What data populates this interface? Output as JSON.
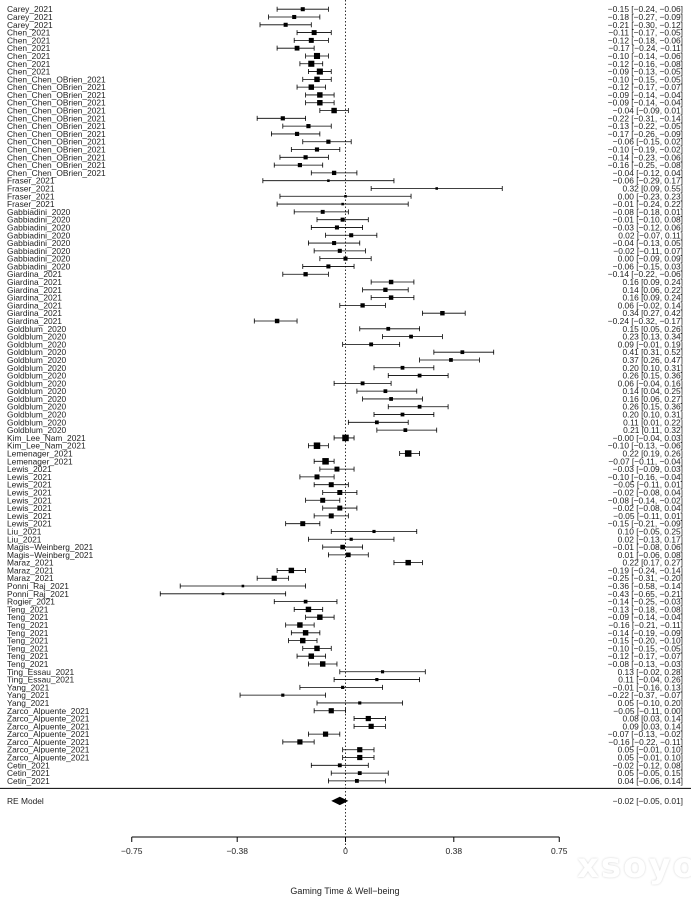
{
  "chart_data": {
    "type": "forest",
    "xlabel": "Gaming Time & Well−being",
    "xlim": [
      -0.75,
      0.75
    ],
    "x_ticks": [
      -0.75,
      -0.38,
      0,
      0.38,
      0.75
    ],
    "x_tick_labels": [
      "−0.75",
      "−0.38",
      "0",
      "0.38",
      "0.75"
    ],
    "reference_line": 0,
    "studies": [
      {
        "label": "Carey_2021",
        "est": -0.15,
        "lo": -0.24,
        "hi": -0.06,
        "ci_text": "−0.15 [−0.24, −0.06]"
      },
      {
        "label": "Carey_2021",
        "est": -0.18,
        "lo": -0.27,
        "hi": -0.09,
        "ci_text": "−0.18 [−0.27, −0.09]"
      },
      {
        "label": "Carey_2021",
        "est": -0.21,
        "lo": -0.3,
        "hi": -0.12,
        "ci_text": "−0.21 [−0.30, −0.12]"
      },
      {
        "label": "Chen_2021",
        "est": -0.11,
        "lo": -0.17,
        "hi": -0.05,
        "ci_text": "−0.11 [−0.17, −0.05]"
      },
      {
        "label": "Chen_2021",
        "est": -0.12,
        "lo": -0.18,
        "hi": -0.06,
        "ci_text": "−0.12 [−0.18, −0.06]"
      },
      {
        "label": "Chen_2021",
        "est": -0.17,
        "lo": -0.24,
        "hi": -0.11,
        "ci_text": "−0.17 [−0.24, −0.11]"
      },
      {
        "label": "Chen_2021",
        "est": -0.1,
        "lo": -0.14,
        "hi": -0.06,
        "ci_text": "−0.10 [−0.14, −0.06]"
      },
      {
        "label": "Chen_2021",
        "est": -0.12,
        "lo": -0.16,
        "hi": -0.08,
        "ci_text": "−0.12 [−0.16, −0.08]"
      },
      {
        "label": "Chen_2021",
        "est": -0.09,
        "lo": -0.13,
        "hi": -0.05,
        "ci_text": "−0.09 [−0.13, −0.05]"
      },
      {
        "label": "Chen_Chen_OBrien_2021",
        "est": -0.1,
        "lo": -0.15,
        "hi": -0.05,
        "ci_text": "−0.10 [−0.15, −0.05]"
      },
      {
        "label": "Chen_Chen_OBrien_2021",
        "est": -0.12,
        "lo": -0.17,
        "hi": -0.07,
        "ci_text": "−0.12 [−0.17, −0.07]"
      },
      {
        "label": "Chen_Chen_OBrien_2021",
        "est": -0.09,
        "lo": -0.14,
        "hi": -0.04,
        "ci_text": "−0.09 [−0.14, −0.04]"
      },
      {
        "label": "Chen_Chen_OBrien_2021",
        "est": -0.09,
        "lo": -0.14,
        "hi": -0.04,
        "ci_text": "−0.09 [−0.14, −0.04]"
      },
      {
        "label": "Chen_Chen_OBrien_2021",
        "est": -0.04,
        "lo": -0.09,
        "hi": 0.01,
        "ci_text": "−0.04 [−0.09, 0.01]"
      },
      {
        "label": "Chen_Chen_OBrien_2021",
        "est": -0.22,
        "lo": -0.31,
        "hi": -0.14,
        "ci_text": "−0.22 [−0.31, −0.14]"
      },
      {
        "label": "Chen_Chen_OBrien_2021",
        "est": -0.13,
        "lo": -0.22,
        "hi": -0.05,
        "ci_text": "−0.13 [−0.22, −0.05]"
      },
      {
        "label": "Chen_Chen_OBrien_2021",
        "est": -0.17,
        "lo": -0.26,
        "hi": -0.09,
        "ci_text": "−0.17 [−0.26, −0.09]"
      },
      {
        "label": "Chen_Chen_OBrien_2021",
        "est": -0.06,
        "lo": -0.15,
        "hi": 0.02,
        "ci_text": "−0.06 [−0.15, 0.02]"
      },
      {
        "label": "Chen_Chen_OBrien_2021",
        "est": -0.1,
        "lo": -0.19,
        "hi": -0.02,
        "ci_text": "−0.10 [−0.19, −0.02]"
      },
      {
        "label": "Chen_Chen_OBrien_2021",
        "est": -0.14,
        "lo": -0.23,
        "hi": -0.06,
        "ci_text": "−0.14 [−0.23, −0.06]"
      },
      {
        "label": "Chen_Chen_OBrien_2021",
        "est": -0.16,
        "lo": -0.25,
        "hi": -0.08,
        "ci_text": "−0.16 [−0.25, −0.08]"
      },
      {
        "label": "Chen_Chen_OBrien_2021",
        "est": -0.04,
        "lo": -0.12,
        "hi": 0.04,
        "ci_text": "−0.04 [−0.12, 0.04]"
      },
      {
        "label": "Fraser_2021",
        "est": -0.06,
        "lo": -0.29,
        "hi": 0.17,
        "ci_text": "−0.06 [−0.29, 0.17]"
      },
      {
        "label": "Fraser_2021",
        "est": 0.32,
        "lo": 0.09,
        "hi": 0.55,
        "ci_text": "0.32 [0.09, 0.55]"
      },
      {
        "label": "Fraser_2021",
        "est": 0.0,
        "lo": -0.23,
        "hi": 0.23,
        "ci_text": "0.00 [−0.23, 0.23]"
      },
      {
        "label": "Fraser_2021",
        "est": -0.01,
        "lo": -0.24,
        "hi": 0.22,
        "ci_text": "−0.01 [−0.24, 0.22]"
      },
      {
        "label": "Gabbiadini_2020",
        "est": -0.08,
        "lo": -0.18,
        "hi": 0.01,
        "ci_text": "−0.08 [−0.18, 0.01]"
      },
      {
        "label": "Gabbiadini_2020",
        "est": -0.01,
        "lo": -0.1,
        "hi": 0.08,
        "ci_text": "−0.01 [−0.10, 0.08]"
      },
      {
        "label": "Gabbiadini_2020",
        "est": -0.03,
        "lo": -0.12,
        "hi": 0.06,
        "ci_text": "−0.03 [−0.12, 0.06]"
      },
      {
        "label": "Gabbiadini_2020",
        "est": 0.02,
        "lo": -0.07,
        "hi": 0.11,
        "ci_text": "0.02 [−0.07, 0.11]"
      },
      {
        "label": "Gabbiadini_2020",
        "est": -0.04,
        "lo": -0.13,
        "hi": 0.05,
        "ci_text": "−0.04 [−0.13, 0.05]"
      },
      {
        "label": "Gabbiadini_2020",
        "est": -0.02,
        "lo": -0.11,
        "hi": 0.07,
        "ci_text": "−0.02 [−0.11, 0.07]"
      },
      {
        "label": "Gabbiadini_2020",
        "est": 0.0,
        "lo": -0.09,
        "hi": 0.09,
        "ci_text": "0.00 [−0.09, 0.09]"
      },
      {
        "label": "Gabbiadini_2020",
        "est": -0.06,
        "lo": -0.15,
        "hi": 0.03,
        "ci_text": "−0.06 [−0.15, 0.03]"
      },
      {
        "label": "Giardina_2021",
        "est": -0.14,
        "lo": -0.22,
        "hi": -0.06,
        "ci_text": "−0.14 [−0.22, −0.06]"
      },
      {
        "label": "Giardina_2021",
        "est": 0.16,
        "lo": 0.09,
        "hi": 0.24,
        "ci_text": "0.16 [0.09, 0.24]"
      },
      {
        "label": "Giardina_2021",
        "est": 0.14,
        "lo": 0.06,
        "hi": 0.22,
        "ci_text": "0.14 [0.06, 0.22]"
      },
      {
        "label": "Giardina_2021",
        "est": 0.16,
        "lo": 0.09,
        "hi": 0.24,
        "ci_text": "0.16 [0.09, 0.24]"
      },
      {
        "label": "Giardina_2021",
        "est": 0.06,
        "lo": -0.02,
        "hi": 0.14,
        "ci_text": "0.06 [−0.02, 0.14]"
      },
      {
        "label": "Giardina_2021",
        "est": 0.34,
        "lo": 0.27,
        "hi": 0.42,
        "ci_text": "0.34 [0.27, 0.42]"
      },
      {
        "label": "Giardina_2021",
        "est": -0.24,
        "lo": -0.32,
        "hi": -0.17,
        "ci_text": "−0.24 [−0.32, −0.17]"
      },
      {
        "label": "Goldblum_2020",
        "est": 0.15,
        "lo": 0.05,
        "hi": 0.26,
        "ci_text": "0.15 [0.05, 0.26]"
      },
      {
        "label": "Goldblum_2020",
        "est": 0.23,
        "lo": 0.13,
        "hi": 0.34,
        "ci_text": "0.23 [0.13, 0.34]"
      },
      {
        "label": "Goldblum_2020",
        "est": 0.09,
        "lo": -0.01,
        "hi": 0.19,
        "ci_text": "0.09 [−0.01, 0.19]"
      },
      {
        "label": "Goldblum_2020",
        "est": 0.41,
        "lo": 0.31,
        "hi": 0.52,
        "ci_text": "0.41 [0.31, 0.52]"
      },
      {
        "label": "Goldblum_2020",
        "est": 0.37,
        "lo": 0.26,
        "hi": 0.47,
        "ci_text": "0.37 [0.26, 0.47]"
      },
      {
        "label": "Goldblum_2020",
        "est": 0.2,
        "lo": 0.1,
        "hi": 0.31,
        "ci_text": "0.20 [0.10, 0.31]"
      },
      {
        "label": "Goldblum_2020",
        "est": 0.26,
        "lo": 0.15,
        "hi": 0.36,
        "ci_text": "0.26 [0.15, 0.36]"
      },
      {
        "label": "Goldblum_2020",
        "est": 0.06,
        "lo": -0.04,
        "hi": 0.16,
        "ci_text": "0.06 [−0.04, 0.16]"
      },
      {
        "label": "Goldblum_2020",
        "est": 0.14,
        "lo": 0.04,
        "hi": 0.25,
        "ci_text": "0.14 [0.04, 0.25]"
      },
      {
        "label": "Goldblum_2020",
        "est": 0.16,
        "lo": 0.06,
        "hi": 0.27,
        "ci_text": "0.16 [0.06, 0.27]"
      },
      {
        "label": "Goldblum_2020",
        "est": 0.26,
        "lo": 0.15,
        "hi": 0.36,
        "ci_text": "0.26 [0.15, 0.36]"
      },
      {
        "label": "Goldblum_2020",
        "est": 0.2,
        "lo": 0.1,
        "hi": 0.31,
        "ci_text": "0.20 [0.10, 0.31]"
      },
      {
        "label": "Goldblum_2020",
        "est": 0.11,
        "lo": 0.01,
        "hi": 0.22,
        "ci_text": "0.11 [0.01, 0.22]"
      },
      {
        "label": "Goldblum_2020",
        "est": 0.21,
        "lo": 0.11,
        "hi": 0.32,
        "ci_text": "0.21 [0.11, 0.32]"
      },
      {
        "label": "Kim_Lee_Nam_2021",
        "est": 0.0,
        "lo": -0.04,
        "hi": 0.03,
        "ci_text": "−0.00 [−0.04, 0.03]"
      },
      {
        "label": "Kim_Lee_Nam_2021",
        "est": -0.1,
        "lo": -0.13,
        "hi": -0.06,
        "ci_text": "−0.10 [−0.13, −0.06]"
      },
      {
        "label": "Lemenager_2021",
        "est": 0.22,
        "lo": 0.19,
        "hi": 0.26,
        "ci_text": "0.22 [0.19, 0.26]"
      },
      {
        "label": "Lemenager_2021",
        "est": -0.07,
        "lo": -0.11,
        "hi": -0.04,
        "ci_text": "−0.07 [−0.11, −0.04]"
      },
      {
        "label": "Lewis_2021",
        "est": -0.03,
        "lo": -0.09,
        "hi": 0.03,
        "ci_text": "−0.03 [−0.09, 0.03]"
      },
      {
        "label": "Lewis_2021",
        "est": -0.1,
        "lo": -0.16,
        "hi": -0.04,
        "ci_text": "−0.10 [−0.16, −0.04]"
      },
      {
        "label": "Lewis_2021",
        "est": -0.05,
        "lo": -0.11,
        "hi": 0.01,
        "ci_text": "−0.05 [−0.11, 0.01]"
      },
      {
        "label": "Lewis_2021",
        "est": -0.02,
        "lo": -0.08,
        "hi": 0.04,
        "ci_text": "−0.02 [−0.08, 0.04]"
      },
      {
        "label": "Lewis_2021",
        "est": -0.08,
        "lo": -0.14,
        "hi": -0.02,
        "ci_text": "−0.08 [−0.14, −0.02]"
      },
      {
        "label": "Lewis_2021",
        "est": -0.02,
        "lo": -0.08,
        "hi": 0.04,
        "ci_text": "−0.02 [−0.08, 0.04]"
      },
      {
        "label": "Lewis_2021",
        "est": -0.05,
        "lo": -0.11,
        "hi": 0.01,
        "ci_text": "−0.05 [−0.11, 0.01]"
      },
      {
        "label": "Lewis_2021",
        "est": -0.15,
        "lo": -0.21,
        "hi": -0.09,
        "ci_text": "−0.15 [−0.21, −0.09]"
      },
      {
        "label": "Liu_2021",
        "est": 0.1,
        "lo": -0.05,
        "hi": 0.25,
        "ci_text": "0.10 [−0.05, 0.25]"
      },
      {
        "label": "Liu_2021",
        "est": 0.02,
        "lo": -0.13,
        "hi": 0.17,
        "ci_text": "0.02 [−0.13, 0.17]"
      },
      {
        "label": "Magis−Weinberg_2021",
        "est": -0.01,
        "lo": -0.08,
        "hi": 0.06,
        "ci_text": "−0.01 [−0.08, 0.06]"
      },
      {
        "label": "Magis−Weinberg_2021",
        "est": 0.01,
        "lo": -0.06,
        "hi": 0.08,
        "ci_text": "0.01 [−0.06, 0.08]"
      },
      {
        "label": "Maraz_2021",
        "est": 0.22,
        "lo": 0.17,
        "hi": 0.27,
        "ci_text": "0.22 [0.17, 0.27]"
      },
      {
        "label": "Maraz_2021",
        "est": -0.19,
        "lo": -0.24,
        "hi": -0.14,
        "ci_text": "−0.19 [−0.24, −0.14]"
      },
      {
        "label": "Maraz_2021",
        "est": -0.25,
        "lo": -0.31,
        "hi": -0.2,
        "ci_text": "−0.25 [−0.31, −0.20]"
      },
      {
        "label": "Ponni_Raj_2021",
        "est": -0.36,
        "lo": -0.58,
        "hi": -0.14,
        "ci_text": "−0.36 [−0.58, −0.14]"
      },
      {
        "label": "Ponni_Raj_2021",
        "est": -0.43,
        "lo": -0.65,
        "hi": -0.21,
        "ci_text": "−0.43 [−0.65, −0.21]"
      },
      {
        "label": "Rogier_2021",
        "est": -0.14,
        "lo": -0.25,
        "hi": -0.03,
        "ci_text": "−0.14 [−0.25, −0.03]"
      },
      {
        "label": "Teng_2021",
        "est": -0.13,
        "lo": -0.18,
        "hi": -0.08,
        "ci_text": "−0.13 [−0.18, −0.08]"
      },
      {
        "label": "Teng_2021",
        "est": -0.09,
        "lo": -0.14,
        "hi": -0.04,
        "ci_text": "−0.09 [−0.14, −0.04]"
      },
      {
        "label": "Teng_2021",
        "est": -0.16,
        "lo": -0.21,
        "hi": -0.11,
        "ci_text": "−0.16 [−0.21, −0.11]"
      },
      {
        "label": "Teng_2021",
        "est": -0.14,
        "lo": -0.19,
        "hi": -0.09,
        "ci_text": "−0.14 [−0.19, −0.09]"
      },
      {
        "label": "Teng_2021",
        "est": -0.15,
        "lo": -0.2,
        "hi": -0.1,
        "ci_text": "−0.15 [−0.20, −0.10]"
      },
      {
        "label": "Teng_2021",
        "est": -0.1,
        "lo": -0.15,
        "hi": -0.05,
        "ci_text": "−0.10 [−0.15, −0.05]"
      },
      {
        "label": "Teng_2021",
        "est": -0.12,
        "lo": -0.17,
        "hi": -0.07,
        "ci_text": "−0.12 [−0.17, −0.07]"
      },
      {
        "label": "Teng_2021",
        "est": -0.08,
        "lo": -0.13,
        "hi": -0.03,
        "ci_text": "−0.08 [−0.13, −0.03]"
      },
      {
        "label": "Ting_Essau_2021",
        "est": 0.13,
        "lo": -0.02,
        "hi": 0.28,
        "ci_text": "0.13 [−0.02, 0.28]"
      },
      {
        "label": "Ting_Essau_2021",
        "est": 0.11,
        "lo": -0.04,
        "hi": 0.26,
        "ci_text": "0.11 [−0.04, 0.26]"
      },
      {
        "label": "Yang_2021",
        "est": -0.01,
        "lo": -0.16,
        "hi": 0.13,
        "ci_text": "−0.01 [−0.16, 0.13]"
      },
      {
        "label": "Yang_2021",
        "est": -0.22,
        "lo": -0.37,
        "hi": -0.07,
        "ci_text": "−0.22 [−0.37, −0.07]"
      },
      {
        "label": "Yang_2021",
        "est": 0.05,
        "lo": -0.1,
        "hi": 0.2,
        "ci_text": "0.05 [−0.10, 0.20]"
      },
      {
        "label": "Zarco_Alpuente_2021",
        "est": -0.05,
        "lo": -0.11,
        "hi": 0.0,
        "ci_text": "−0.05 [−0.11, 0.00]"
      },
      {
        "label": "Zarco_Alpuente_2021",
        "est": 0.08,
        "lo": 0.03,
        "hi": 0.14,
        "ci_text": "0.08 [0.03, 0.14]"
      },
      {
        "label": "Zarco_Alpuente_2021",
        "est": 0.09,
        "lo": 0.03,
        "hi": 0.14,
        "ci_text": "0.09 [0.03, 0.14]"
      },
      {
        "label": "Zarco_Alpuente_2021",
        "est": -0.07,
        "lo": -0.13,
        "hi": -0.02,
        "ci_text": "−0.07 [−0.13, −0.02]"
      },
      {
        "label": "Zarco_Alpuente_2021",
        "est": -0.16,
        "lo": -0.22,
        "hi": -0.11,
        "ci_text": "−0.16 [−0.22, −0.11]"
      },
      {
        "label": "Zarco_Alpuente_2021",
        "est": 0.05,
        "lo": -0.01,
        "hi": 0.1,
        "ci_text": "0.05 [−0.01, 0.10]"
      },
      {
        "label": "Zarco_Alpuente_2021",
        "est": 0.05,
        "lo": -0.01,
        "hi": 0.1,
        "ci_text": "0.05 [−0.01, 0.10]"
      },
      {
        "label": "Cetin_2021",
        "est": -0.02,
        "lo": -0.12,
        "hi": 0.08,
        "ci_text": "−0.02 [−0.12, 0.08]"
      },
      {
        "label": "Cetin_2021",
        "est": 0.05,
        "lo": -0.05,
        "hi": 0.15,
        "ci_text": "0.05 [−0.05, 0.15]"
      },
      {
        "label": "Cetin_2021",
        "est": 0.04,
        "lo": -0.06,
        "hi": 0.14,
        "ci_text": "0.04 [−0.06, 0.14]"
      }
    ],
    "summary": {
      "label": "RE Model",
      "est": -0.02,
      "lo": -0.05,
      "hi": 0.01,
      "ci_text": "−0.02 [−0.05, 0.01]"
    }
  },
  "watermark": "xsoyo"
}
